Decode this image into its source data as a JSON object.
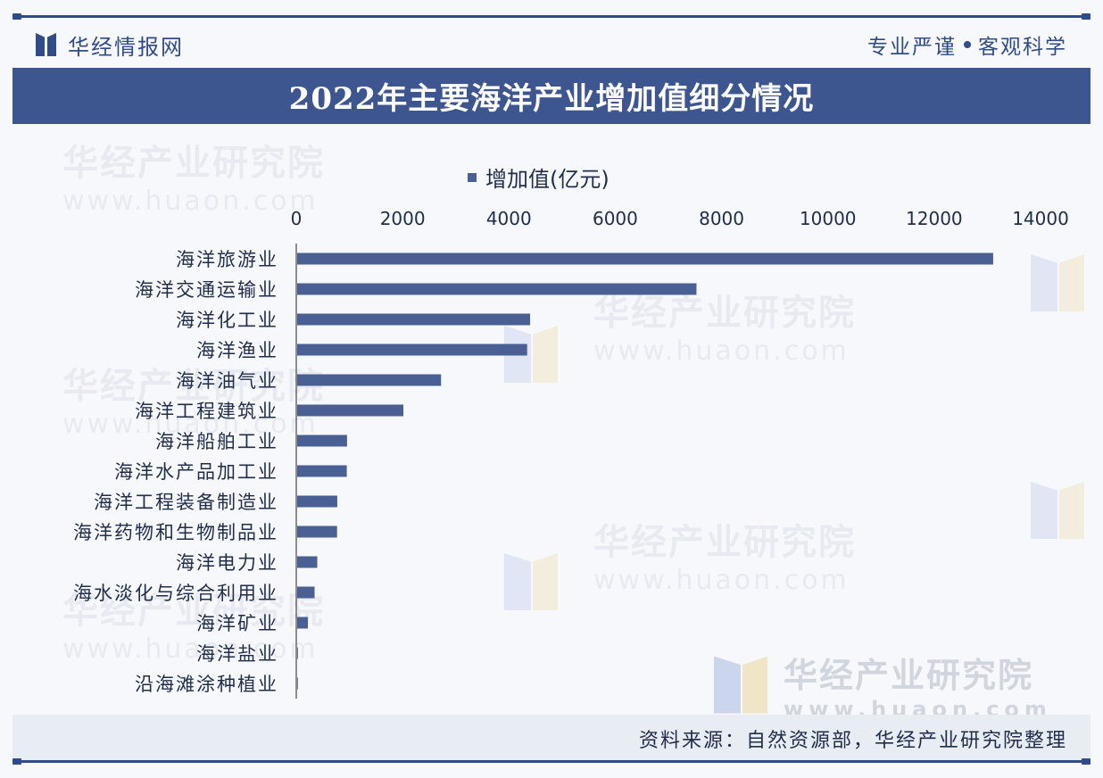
{
  "header": {
    "brand": "华经情报网",
    "slogan_left": "专业严谨",
    "slogan_right": "客观科学"
  },
  "title": "2022年主要海洋产业增加值细分情况",
  "watermark": {
    "cn": "华经产业研究院",
    "en": "www.huaon.com"
  },
  "chart_data": {
    "type": "bar",
    "orientation": "horizontal",
    "x_axis_position": "top",
    "legend_position": "top-center",
    "grid": false,
    "xlim": [
      0,
      14000
    ],
    "ticks": [
      "0",
      "2000",
      "4000",
      "6000",
      "8000",
      "10000",
      "12000",
      "14000"
    ],
    "categories": [
      "海洋旅游业",
      "海洋交通运输业",
      "海洋化工业",
      "海洋渔业",
      "海洋油气业",
      "海洋工程建筑业",
      "海洋船舶工业",
      "海洋水产品加工业",
      "海洋工程装备制造业",
      "海洋药物和生物制品业",
      "海洋电力业",
      "海水淡化与综合利用业",
      "海洋矿业",
      "海洋盐业",
      "沿海滩涂种植业"
    ],
    "series": [
      {
        "name": "增加值(亿元)",
        "color": "#4a5f93",
        "values": [
          13109,
          7528,
          4399,
          4343,
          2724,
          2015,
          955,
          950,
          771,
          767,
          395,
          344,
          219,
          31,
          8
        ]
      }
    ]
  },
  "footer": {
    "source": "资料来源：自然资源部，华经产业研究院整理"
  }
}
